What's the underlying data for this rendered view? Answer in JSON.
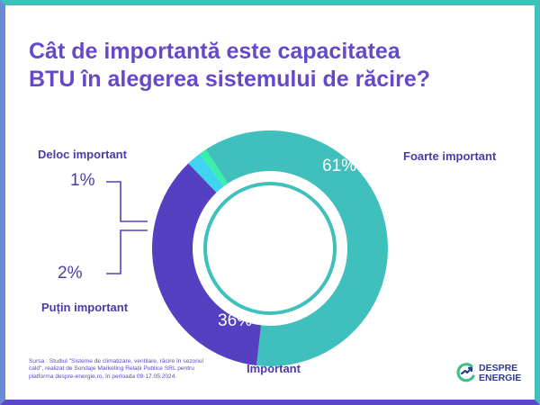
{
  "title_line1": "Cât de importantă este capacitatea",
  "title_line2": "BTU în alegerea sistemului de răcire?",
  "chart_data": {
    "type": "pie",
    "title": "Cât de importantă este capacitatea BTU în alegerea sistemului de răcire?",
    "slices": [
      {
        "label": "Foarte important",
        "value": 61,
        "display": "61%",
        "color": "#3fc0bd"
      },
      {
        "label": "Important",
        "value": 36,
        "display": "36%",
        "color": "#5540c2"
      },
      {
        "label": "Puțin important",
        "value": 2,
        "display": "2%",
        "color": "#3fd4f0"
      },
      {
        "label": "Deloc important",
        "value": 1,
        "display": "1%",
        "color": "#39f0a8"
      }
    ]
  },
  "source": "Sursa : Studiul \"Sisteme de climatizare, ventilare, răcire în sezonul cald\", realizat de Sondaje Marketing Relații Publice SRL pentru platforma despre-energie.ro, în perioada 09-17.05.2024.",
  "logo": {
    "line1": "DESPRE",
    "line2": "ENERGIE",
    "icon": "lightning-e-logo-icon"
  },
  "colors": {
    "title": "#6549c9",
    "accent_teal": "#3fc0bd",
    "accent_purple": "#5540c2"
  }
}
